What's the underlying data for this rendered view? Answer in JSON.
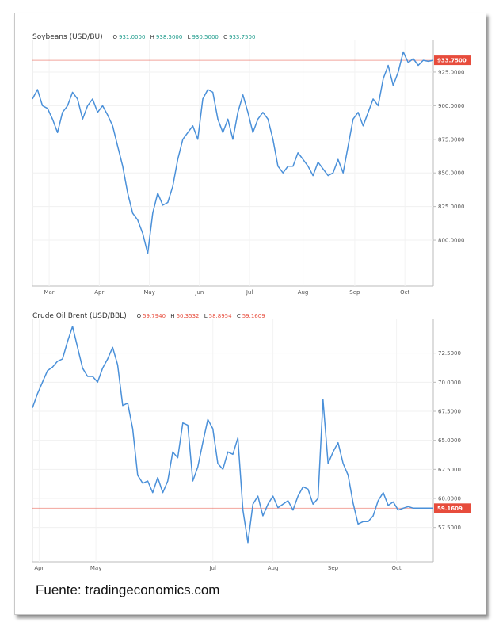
{
  "source_text": "Fuente: tradingeconomics.com",
  "chart_data": [
    {
      "type": "line",
      "symbol": "Soybeans (USD/BU)",
      "ohlc": {
        "o_label": "O",
        "o": "931.0000",
        "h_label": "H",
        "h": "938.5000",
        "l_label": "L",
        "l": "930.5000",
        "c_label": "C",
        "c": "933.7500"
      },
      "ohlc_color": "#1a9a8a",
      "line_color": "#4a90d9",
      "last_value": 933.75,
      "last_label": "933.7500",
      "badge_color": "#e74c3c",
      "ylim": [
        780,
        945
      ],
      "y_ticks": [
        800,
        825,
        850,
        875,
        900,
        925
      ],
      "y_tick_labels": [
        "800.0000",
        "825.0000",
        "850.0000",
        "875.0000",
        "900.0000",
        "925.0000"
      ],
      "x_range": [
        0,
        240
      ],
      "x_ticks": [
        10,
        40,
        70,
        100,
        130,
        162,
        193,
        223
      ],
      "x_tick_labels": [
        "Mar",
        "Apr",
        "May",
        "Jun",
        "Jul",
        "Aug",
        "Sep",
        "Oct"
      ],
      "x": [
        0,
        3,
        6,
        9,
        12,
        15,
        18,
        21,
        24,
        27,
        30,
        33,
        36,
        39,
        42,
        45,
        48,
        51,
        54,
        57,
        60,
        63,
        66,
        69,
        72,
        75,
        78,
        81,
        84,
        87,
        90,
        93,
        96,
        99,
        102,
        105,
        108,
        111,
        114,
        117,
        120,
        123,
        126,
        129,
        132,
        135,
        138,
        141,
        144,
        147,
        150,
        153,
        156,
        159,
        162,
        165,
        168,
        171,
        174,
        177,
        180,
        183,
        186,
        189,
        192,
        195,
        198,
        201,
        204,
        207,
        210,
        213,
        216,
        219,
        222,
        225,
        228,
        231,
        234,
        237,
        240
      ],
      "y": [
        905,
        912,
        900,
        898,
        890,
        880,
        895,
        900,
        910,
        905,
        890,
        900,
        905,
        895,
        900,
        893,
        885,
        870,
        855,
        835,
        820,
        815,
        805,
        790,
        820,
        835,
        826,
        828,
        840,
        860,
        875,
        880,
        885,
        875,
        905,
        912,
        910,
        890,
        880,
        890,
        875,
        895,
        908,
        895,
        880,
        890,
        895,
        890,
        875,
        855,
        850,
        855,
        855,
        865,
        860,
        855,
        848,
        858,
        853,
        848,
        850,
        860,
        850,
        870,
        890,
        895,
        885,
        895,
        905,
        900,
        920,
        930,
        915,
        925,
        940,
        932,
        935,
        930,
        933.75,
        933,
        933.75
      ]
    },
    {
      "type": "line",
      "symbol": "Crude Oil Brent (USD/BBL)",
      "ohlc": {
        "o_label": "O",
        "o": "59.7940",
        "h_label": "H",
        "h": "60.3532",
        "l_label": "L",
        "l": "58.8954",
        "c_label": "C",
        "c": "59.1609"
      },
      "ohlc_color": "#e74c3c",
      "line_color": "#4a90d9",
      "last_value": 59.16,
      "last_label": "59.1609",
      "badge_color": "#e74c3c",
      "ylim": [
        55.5,
        75
      ],
      "y_ticks": [
        57.5,
        60,
        62.5,
        65,
        67.5,
        70,
        72.5
      ],
      "y_tick_labels": [
        "57.5000",
        "60.0000",
        "62.5000",
        "65.0000",
        "67.5000",
        "70.0000",
        "72.5000"
      ],
      "x_range": [
        0,
        240
      ],
      "x_ticks": [
        4,
        38,
        108,
        144,
        180,
        218
      ],
      "x_tick_labels": [
        "Apr",
        "May",
        "Jul",
        "Aug",
        "Sep",
        "Oct"
      ],
      "x": [
        0,
        3,
        6,
        9,
        12,
        15,
        18,
        21,
        24,
        27,
        30,
        33,
        36,
        39,
        42,
        45,
        48,
        51,
        54,
        57,
        60,
        63,
        66,
        69,
        72,
        75,
        78,
        81,
        84,
        87,
        90,
        93,
        96,
        99,
        102,
        105,
        108,
        111,
        114,
        117,
        120,
        123,
        126,
        129,
        132,
        135,
        138,
        141,
        144,
        147,
        150,
        153,
        156,
        159,
        162,
        165,
        168,
        171,
        174,
        177,
        180,
        183,
        186,
        189,
        192,
        195,
        198,
        201,
        204,
        207,
        210,
        213,
        216,
        219,
        222,
        225,
        228,
        231,
        234,
        237,
        240
      ],
      "y": [
        67.8,
        69,
        70,
        71,
        71.3,
        71.8,
        72,
        73.5,
        74.8,
        73,
        71.2,
        70.5,
        70.5,
        70,
        71.2,
        72,
        73,
        71.5,
        68,
        68.2,
        66,
        62,
        61.3,
        61.5,
        60.5,
        61.8,
        60.5,
        61.5,
        64,
        63.5,
        66.5,
        66.3,
        61.5,
        62.7,
        64.8,
        66.8,
        66,
        63,
        62.5,
        64,
        63.8,
        65.2,
        59,
        56.2,
        59.5,
        60.2,
        58.5,
        59.5,
        60.2,
        59.2,
        59.5,
        59.8,
        59,
        60.2,
        61,
        60.8,
        59.5,
        60,
        68.5,
        63,
        64,
        64.8,
        63,
        62,
        59.6,
        57.8,
        58,
        58,
        58.5,
        59.8,
        60.5,
        59.4,
        59.7,
        59,
        59.16,
        59.3,
        59.16,
        59.16,
        59.16,
        59.16,
        59.16
      ]
    }
  ]
}
